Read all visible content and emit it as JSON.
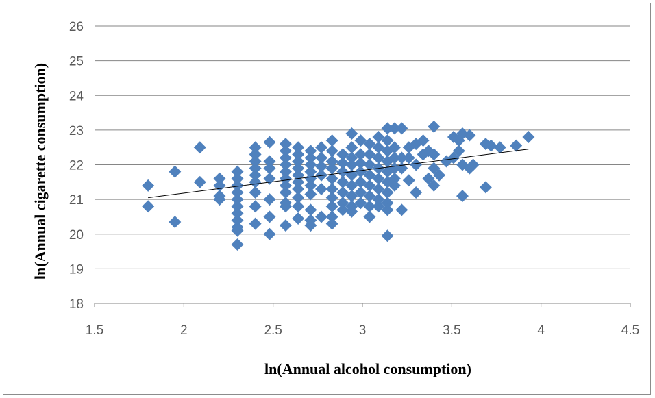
{
  "chart_data": {
    "type": "scatter",
    "xlabel": "ln(Annual alcohol consumption)",
    "ylabel": "ln(Annual cigarette consumption)",
    "xlim": [
      1.5,
      4.5
    ],
    "ylim": [
      18,
      26
    ],
    "x_ticks": [
      "1.5",
      "2",
      "2.5",
      "3",
      "3.5",
      "4",
      "4.5"
    ],
    "y_ticks": [
      "18",
      "19",
      "20",
      "21",
      "22",
      "23",
      "24",
      "25",
      "26"
    ],
    "grid": "horizontal",
    "legend": "none",
    "marker_color": "#4F81BD",
    "trendline_color": "#000000",
    "trendline": {
      "x": [
        1.8,
        3.93
      ],
      "y": [
        21.05,
        22.45
      ]
    },
    "series": [
      {
        "points": [
          [
            1.8,
            21.4
          ],
          [
            1.8,
            20.8
          ],
          [
            1.95,
            21.8
          ],
          [
            1.95,
            20.35
          ],
          [
            2.09,
            22.5
          ],
          [
            2.09,
            21.5
          ],
          [
            2.2,
            21.6
          ],
          [
            2.2,
            21.4
          ],
          [
            2.2,
            21.1
          ],
          [
            2.2,
            21.0
          ],
          [
            2.3,
            21.8
          ],
          [
            2.3,
            21.6
          ],
          [
            2.3,
            21.4
          ],
          [
            2.3,
            21.2
          ],
          [
            2.3,
            21.0
          ],
          [
            2.3,
            20.8
          ],
          [
            2.3,
            20.6
          ],
          [
            2.3,
            20.4
          ],
          [
            2.3,
            20.2
          ],
          [
            2.3,
            20.1
          ],
          [
            2.3,
            19.7
          ],
          [
            2.4,
            22.5
          ],
          [
            2.4,
            22.3
          ],
          [
            2.4,
            22.1
          ],
          [
            2.4,
            21.9
          ],
          [
            2.4,
            21.7
          ],
          [
            2.4,
            21.5
          ],
          [
            2.4,
            21.2
          ],
          [
            2.4,
            20.8
          ],
          [
            2.4,
            20.3
          ],
          [
            2.48,
            22.65
          ],
          [
            2.48,
            22.1
          ],
          [
            2.48,
            21.9
          ],
          [
            2.48,
            21.6
          ],
          [
            2.48,
            21.0
          ],
          [
            2.48,
            20.5
          ],
          [
            2.48,
            20.0
          ],
          [
            2.57,
            22.6
          ],
          [
            2.57,
            22.4
          ],
          [
            2.57,
            22.2
          ],
          [
            2.57,
            22.0
          ],
          [
            2.57,
            21.8
          ],
          [
            2.57,
            21.6
          ],
          [
            2.57,
            21.4
          ],
          [
            2.57,
            21.2
          ],
          [
            2.57,
            20.9
          ],
          [
            2.57,
            20.8
          ],
          [
            2.57,
            20.25
          ],
          [
            2.64,
            22.5
          ],
          [
            2.64,
            22.3
          ],
          [
            2.64,
            22.1
          ],
          [
            2.64,
            21.9
          ],
          [
            2.64,
            21.7
          ],
          [
            2.64,
            21.5
          ],
          [
            2.64,
            21.3
          ],
          [
            2.64,
            21.05
          ],
          [
            2.64,
            20.8
          ],
          [
            2.64,
            20.45
          ],
          [
            2.71,
            22.4
          ],
          [
            2.71,
            22.2
          ],
          [
            2.71,
            22.0
          ],
          [
            2.71,
            21.8
          ],
          [
            2.71,
            21.6
          ],
          [
            2.71,
            21.4
          ],
          [
            2.71,
            21.15
          ],
          [
            2.71,
            20.7
          ],
          [
            2.71,
            20.4
          ],
          [
            2.71,
            20.25
          ],
          [
            2.77,
            22.5
          ],
          [
            2.77,
            22.2
          ],
          [
            2.77,
            21.95
          ],
          [
            2.77,
            21.7
          ],
          [
            2.77,
            21.3
          ],
          [
            2.77,
            20.5
          ],
          [
            2.83,
            22.7
          ],
          [
            2.83,
            22.4
          ],
          [
            2.83,
            22.1
          ],
          [
            2.83,
            21.9
          ],
          [
            2.83,
            21.6
          ],
          [
            2.83,
            21.3
          ],
          [
            2.83,
            21.05
          ],
          [
            2.83,
            20.8
          ],
          [
            2.83,
            20.5
          ],
          [
            2.83,
            20.3
          ],
          [
            2.89,
            22.3
          ],
          [
            2.89,
            22.05
          ],
          [
            2.89,
            21.8
          ],
          [
            2.89,
            21.5
          ],
          [
            2.89,
            21.2
          ],
          [
            2.89,
            20.9
          ],
          [
            2.89,
            20.7
          ],
          [
            2.94,
            22.9
          ],
          [
            2.94,
            22.5
          ],
          [
            2.94,
            22.2
          ],
          [
            2.94,
            22.0
          ],
          [
            2.94,
            21.7
          ],
          [
            2.94,
            21.4
          ],
          [
            2.94,
            21.1
          ],
          [
            2.94,
            20.8
          ],
          [
            2.94,
            20.65
          ],
          [
            2.99,
            22.7
          ],
          [
            2.99,
            22.3
          ],
          [
            2.99,
            22.05
          ],
          [
            2.99,
            21.8
          ],
          [
            2.99,
            21.5
          ],
          [
            2.99,
            21.2
          ],
          [
            2.99,
            20.9
          ],
          [
            3.04,
            22.6
          ],
          [
            3.04,
            22.3
          ],
          [
            3.04,
            22.0
          ],
          [
            3.04,
            21.7
          ],
          [
            3.04,
            21.4
          ],
          [
            3.04,
            21.1
          ],
          [
            3.04,
            20.8
          ],
          [
            3.04,
            20.5
          ],
          [
            3.09,
            22.8
          ],
          [
            3.09,
            22.5
          ],
          [
            3.09,
            22.2
          ],
          [
            3.09,
            21.9
          ],
          [
            3.09,
            21.6
          ],
          [
            3.09,
            21.3
          ],
          [
            3.09,
            21.0
          ],
          [
            3.09,
            20.8
          ],
          [
            3.14,
            23.05
          ],
          [
            3.14,
            22.7
          ],
          [
            3.14,
            22.4
          ],
          [
            3.14,
            22.1
          ],
          [
            3.14,
            21.8
          ],
          [
            3.14,
            21.5
          ],
          [
            3.14,
            21.2
          ],
          [
            3.14,
            20.9
          ],
          [
            3.14,
            20.7
          ],
          [
            3.14,
            19.95
          ],
          [
            3.18,
            23.05
          ],
          [
            3.18,
            22.5
          ],
          [
            3.18,
            22.2
          ],
          [
            3.18,
            21.9
          ],
          [
            3.18,
            21.6
          ],
          [
            3.18,
            21.4
          ],
          [
            3.22,
            23.05
          ],
          [
            3.22,
            22.2
          ],
          [
            3.22,
            21.9
          ],
          [
            3.22,
            20.7
          ],
          [
            3.26,
            22.5
          ],
          [
            3.26,
            22.2
          ],
          [
            3.26,
            21.55
          ],
          [
            3.3,
            22.6
          ],
          [
            3.3,
            22.0
          ],
          [
            3.3,
            21.2
          ],
          [
            3.34,
            22.7
          ],
          [
            3.34,
            22.3
          ],
          [
            3.37,
            22.4
          ],
          [
            3.37,
            21.6
          ],
          [
            3.4,
            23.1
          ],
          [
            3.4,
            22.3
          ],
          [
            3.4,
            21.9
          ],
          [
            3.4,
            21.4
          ],
          [
            3.43,
            21.7
          ],
          [
            3.47,
            22.1
          ],
          [
            3.51,
            22.8
          ],
          [
            3.51,
            22.2
          ],
          [
            3.54,
            22.7
          ],
          [
            3.54,
            22.4
          ],
          [
            3.56,
            22.9
          ],
          [
            3.56,
            22.0
          ],
          [
            3.56,
            21.1
          ],
          [
            3.6,
            22.85
          ],
          [
            3.6,
            21.9
          ],
          [
            3.62,
            22.0
          ],
          [
            3.69,
            22.6
          ],
          [
            3.69,
            21.35
          ],
          [
            3.72,
            22.55
          ],
          [
            3.77,
            22.5
          ],
          [
            3.86,
            22.55
          ],
          [
            3.93,
            22.8
          ]
        ]
      }
    ]
  }
}
